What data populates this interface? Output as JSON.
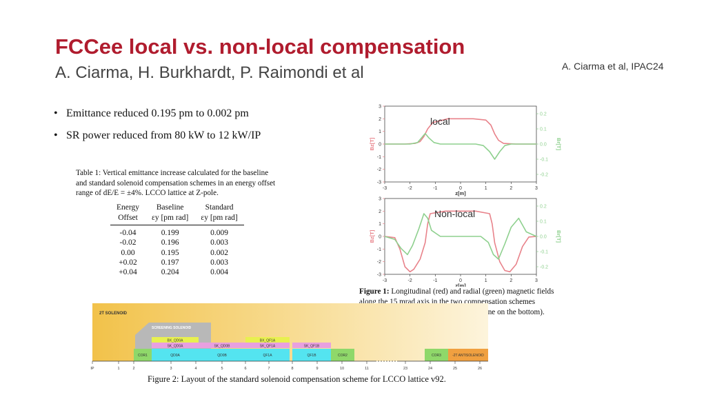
{
  "header": {
    "title": "FCCee local vs. non-local compensation",
    "authors": "A. Ciarma, H. Burkhardt, P. Raimondi et al",
    "reference": "A. Ciarma et al, IPAC24"
  },
  "bullets": [
    "Emittance reduced 0.195 pm to 0.002 pm",
    "SR power reduced from 80 kW to 12 kW/IP"
  ],
  "table1": {
    "caption": "Table 1: Vertical emittance increase calculated for the baseline and standard solenoid compensation schemes in an energy offset range of dE/E = ±4%. LCCO lattice at Z-pole.",
    "headers": [
      [
        "Energy",
        "Baseline",
        "Standard"
      ],
      [
        "Offset",
        "εy [pm rad]",
        "εy [pm rad]"
      ]
    ],
    "rows": [
      [
        "-0.04",
        "0.199",
        "0.009"
      ],
      [
        "-0.02",
        "0.196",
        "0.003"
      ],
      [
        "0.00",
        "0.195",
        "0.002"
      ],
      [
        "+0.02",
        "0.197",
        "0.003"
      ],
      [
        "+0.04",
        "0.204",
        "0.004"
      ]
    ]
  },
  "figure1": {
    "caption_label": "Figure 1:",
    "caption": "Longitudinal (red) and radial (green) magnetic fields along the 15 mrad axis in the two compensation schemes (standard proposed here on the top, baseline on the bottom).",
    "colors": {
      "bz": "#e8828a",
      "br": "#8ed08e",
      "axis": "#444444"
    },
    "chart_data": [
      {
        "type": "line",
        "annotation": "local",
        "xlabel": "z[m]",
        "ylabel_left": "Bz[T]",
        "ylabel_right": "Br[T]",
        "xlim": [
          -3,
          3
        ],
        "ylim_left": [
          -3,
          3
        ],
        "ylim_right": [
          -0.25,
          0.25
        ],
        "x_ticks": [
          "-3",
          "-2",
          "-1",
          "0",
          "1",
          "2",
          "3"
        ],
        "y_ticks_left": [
          "3",
          "2",
          "1",
          "0",
          "-1",
          "-2",
          "-3"
        ],
        "y_ticks_right": [
          "0.2",
          "0.1",
          "0.0",
          "-0.1",
          "-0.2"
        ],
        "series": [
          {
            "axis": "left",
            "color": "#e8828a",
            "x": [
              -3,
              -2.2,
              -1.8,
              -1.6,
              -1.45,
              -1.3,
              -1.1,
              -0.5,
              0,
              0.5,
              1.0,
              1.2,
              1.35,
              1.5,
              1.7,
              2.2,
              3
            ],
            "y": [
              0,
              0,
              0.05,
              0.2,
              0.6,
              1.2,
              1.7,
              2.0,
              2.0,
              2.0,
              1.9,
              1.5,
              0.8,
              0.3,
              0.05,
              0,
              0
            ]
          },
          {
            "axis": "right",
            "color": "#8ed08e",
            "x": [
              -3,
              -2.0,
              -1.7,
              -1.55,
              -1.4,
              -1.25,
              -1.05,
              -0.8,
              0,
              0.6,
              0.9,
              1.15,
              1.35,
              1.55,
              1.75,
              2.0,
              3
            ],
            "y": [
              0,
              0,
              0.01,
              0.04,
              0.07,
              0.04,
              0.01,
              0,
              0,
              0,
              -0.01,
              -0.05,
              -0.1,
              -0.05,
              -0.01,
              0,
              0
            ]
          }
        ]
      },
      {
        "type": "line",
        "annotation": "Non-local",
        "xlabel": "z[m]",
        "ylabel_left": "Bz[T]",
        "ylabel_right": "Br[T]",
        "xlim": [
          -3,
          3
        ],
        "ylim_left": [
          -3,
          3
        ],
        "ylim_right": [
          -0.25,
          0.25
        ],
        "x_ticks": [
          "-3",
          "-2",
          "-1",
          "0",
          "1",
          "2",
          "3"
        ],
        "y_ticks_left": [
          "3",
          "2",
          "1",
          "0",
          "-1",
          "-2",
          "-3"
        ],
        "y_ticks_right": [
          "0.2",
          "0.1",
          "0.0",
          "-0.1",
          "-0.2"
        ],
        "series": [
          {
            "axis": "left",
            "color": "#e8828a",
            "x": [
              -3,
              -2.6,
              -2.4,
              -2.2,
              -2.0,
              -1.85,
              -1.6,
              -1.4,
              -1.3,
              -1.2,
              -0.6,
              0,
              0.6,
              1.15,
              1.25,
              1.35,
              1.55,
              1.75,
              1.95,
              2.2,
              2.45,
              2.7,
              3
            ],
            "y": [
              0,
              -0.1,
              -1.0,
              -2.4,
              -2.8,
              -2.6,
              -1.8,
              -0.5,
              1.0,
              1.8,
              2.0,
              2.0,
              2.0,
              1.8,
              1.0,
              -0.5,
              -2.0,
              -2.7,
              -2.8,
              -2.2,
              -0.8,
              -0.05,
              0
            ]
          },
          {
            "axis": "right",
            "color": "#8ed08e",
            "x": [
              -3,
              -2.6,
              -2.35,
              -2.1,
              -1.9,
              -1.65,
              -1.45,
              -1.3,
              -1.15,
              -0.8,
              0,
              0.8,
              1.1,
              1.3,
              1.5,
              1.75,
              2.0,
              2.3,
              2.6,
              3
            ],
            "y": [
              0,
              -0.02,
              -0.08,
              -0.12,
              -0.06,
              0.05,
              0.15,
              0.12,
              0.04,
              0,
              0,
              0,
              -0.04,
              -0.12,
              -0.15,
              -0.05,
              0.06,
              0.12,
              0.03,
              0
            ]
          }
        ]
      }
    ]
  },
  "figure2": {
    "caption": "Figure 2: Layout of the standard solenoid compensation scheme for LCCO lattice v92.",
    "labels": {
      "solenoid": "2T SOLENOID",
      "screening": "SCREENING SOLENOID",
      "bx_qd0a": "BX_QD0A",
      "sk_qd0a": "SK_QD0A",
      "sk_qd0b": "SK_QD0B",
      "bx_qf1a": "BX_QF1A",
      "sk_qf1a": "SK_QF1A",
      "sk_qf1b": "SK_QF1B",
      "cor1": "COR1",
      "qd0a": "QD0A",
      "qd0b": "QD0B",
      "qf1a": "QF1A",
      "qf1b": "QF1B",
      "cor2": "COR2",
      "cor3": "COR3",
      "anti": "-2T ANTISOLENOID"
    },
    "axis_ticks": [
      "IP",
      "1",
      "2",
      "3",
      "4",
      "5",
      "6",
      "7",
      "8",
      "9",
      "10",
      "11",
      "23",
      "24",
      "25",
      "26"
    ],
    "colors": {
      "solenoid": "#f5c84c",
      "screening": "#b0b0b0",
      "corrector": "#8fd86a",
      "quad": "#54e4f0",
      "skew": "#e8a0e0",
      "bend": "#e8f050",
      "anti": "#f0a040"
    }
  }
}
